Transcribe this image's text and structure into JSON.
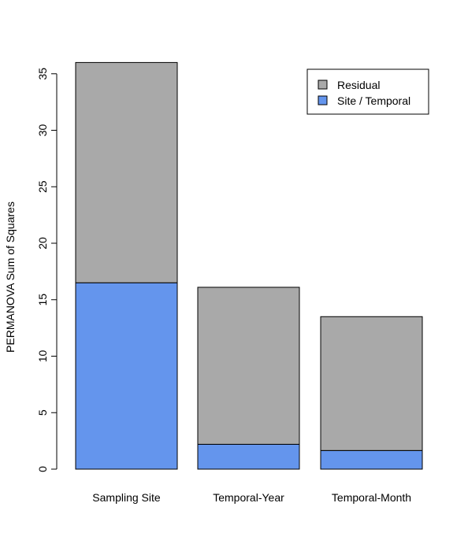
{
  "chart_data": {
    "type": "bar",
    "stacked": true,
    "categories": [
      "Sampling Site",
      "Temporal-Year",
      "Temporal-Month"
    ],
    "series": [
      {
        "name": "Site / Temporal",
        "values": [
          16.5,
          2.2,
          1.65
        ],
        "color": "#6495ED"
      },
      {
        "name": "Residual",
        "values": [
          19.5,
          13.9,
          11.85
        ],
        "color": "#A9A9A9"
      }
    ],
    "title": "",
    "xlabel": "",
    "ylabel": "PERMANOVA Sum of Squares",
    "ylim": [
      0,
      36
    ],
    "yticks": [
      0,
      5,
      10,
      15,
      20,
      25,
      30,
      35
    ],
    "grid": false,
    "legend": {
      "position": "top-right",
      "entries": [
        {
          "label": "Residual",
          "color": "#A9A9A9"
        },
        {
          "label": "Site / Temporal",
          "color": "#6495ED"
        }
      ]
    }
  }
}
